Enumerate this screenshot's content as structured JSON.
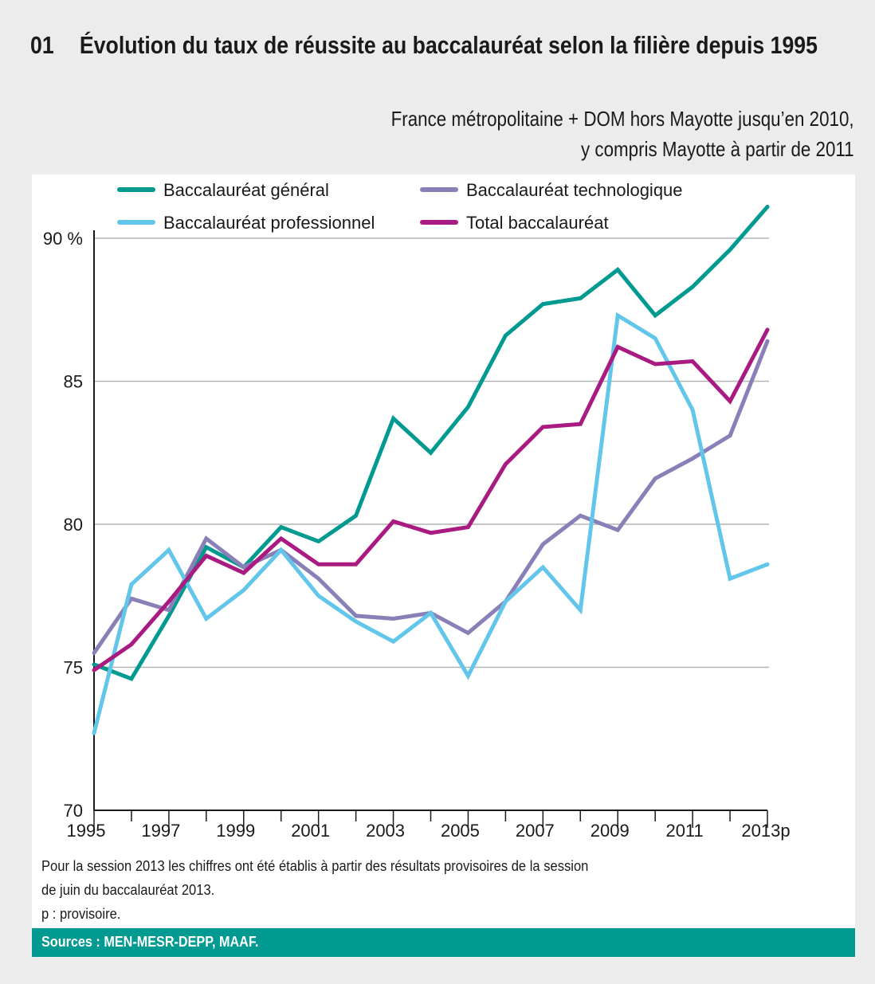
{
  "header": {
    "number": "01",
    "title": "Évolution du taux de réussite au baccalauréat selon la filière depuis 1995",
    "subtitle_line1": "France métropolitaine + DOM hors Mayotte jusqu’en 2010,",
    "subtitle_line2": "y compris Mayotte à partir de 2011"
  },
  "notes": {
    "line1": "Pour la session 2013 les chiffres ont été établis à partir des résultats provisoires de la session",
    "line2": "de juin du baccalauréat 2013.",
    "line3": "p : provisoire."
  },
  "sources": "Sources : MEN-MESR-DEPP, MAAF.",
  "chart_data": {
    "type": "line",
    "title": "Évolution du taux de réussite au baccalauréat selon la filière depuis 1995",
    "xlabel": "",
    "ylabel": "%",
    "x": [
      1995,
      1996,
      1997,
      1998,
      1999,
      2000,
      2001,
      2002,
      2003,
      2004,
      2005,
      2006,
      2007,
      2008,
      2009,
      2010,
      2011,
      2012,
      2013
    ],
    "x_tick_labels": [
      "1995",
      "1997",
      "1999",
      "2001",
      "2003",
      "2005",
      "2007",
      "2009",
      "2011",
      "2013p"
    ],
    "y_ticks": [
      70,
      75,
      80,
      85,
      90
    ],
    "y_tick_labels": [
      "70",
      "75",
      "80",
      "85",
      "90 %"
    ],
    "ylim": [
      70,
      92
    ],
    "grid": true,
    "legend_position": "top",
    "series": [
      {
        "name": "Baccalauréat général",
        "color": "#009a91",
        "values": [
          75.1,
          74.6,
          76.8,
          79.2,
          78.5,
          79.9,
          79.4,
          80.3,
          83.7,
          82.5,
          84.1,
          86.6,
          87.7,
          87.9,
          88.9,
          87.3,
          88.3,
          89.6,
          91.1
        ]
      },
      {
        "name": "Baccalauréat technologique",
        "color": "#8a80b8",
        "values": [
          75.5,
          77.4,
          77.0,
          79.5,
          78.5,
          79.1,
          78.1,
          76.8,
          76.7,
          76.9,
          76.2,
          77.3,
          79.3,
          80.3,
          79.8,
          81.6,
          82.3,
          83.1,
          86.4
        ]
      },
      {
        "name": "Baccalauréat professionnel",
        "color": "#62c6ea",
        "values": [
          72.7,
          77.9,
          79.1,
          76.7,
          77.7,
          79.1,
          77.5,
          76.6,
          75.9,
          76.9,
          74.7,
          77.3,
          78.5,
          77.0,
          87.3,
          86.5,
          84.0,
          78.1,
          78.6
        ]
      },
      {
        "name": "Total baccalauréat",
        "color": "#a91b81",
        "values": [
          74.9,
          75.8,
          77.3,
          78.9,
          78.3,
          79.5,
          78.6,
          78.6,
          80.1,
          79.7,
          79.9,
          82.1,
          83.4,
          83.5,
          86.2,
          85.6,
          85.7,
          84.3,
          86.8
        ]
      }
    ]
  }
}
